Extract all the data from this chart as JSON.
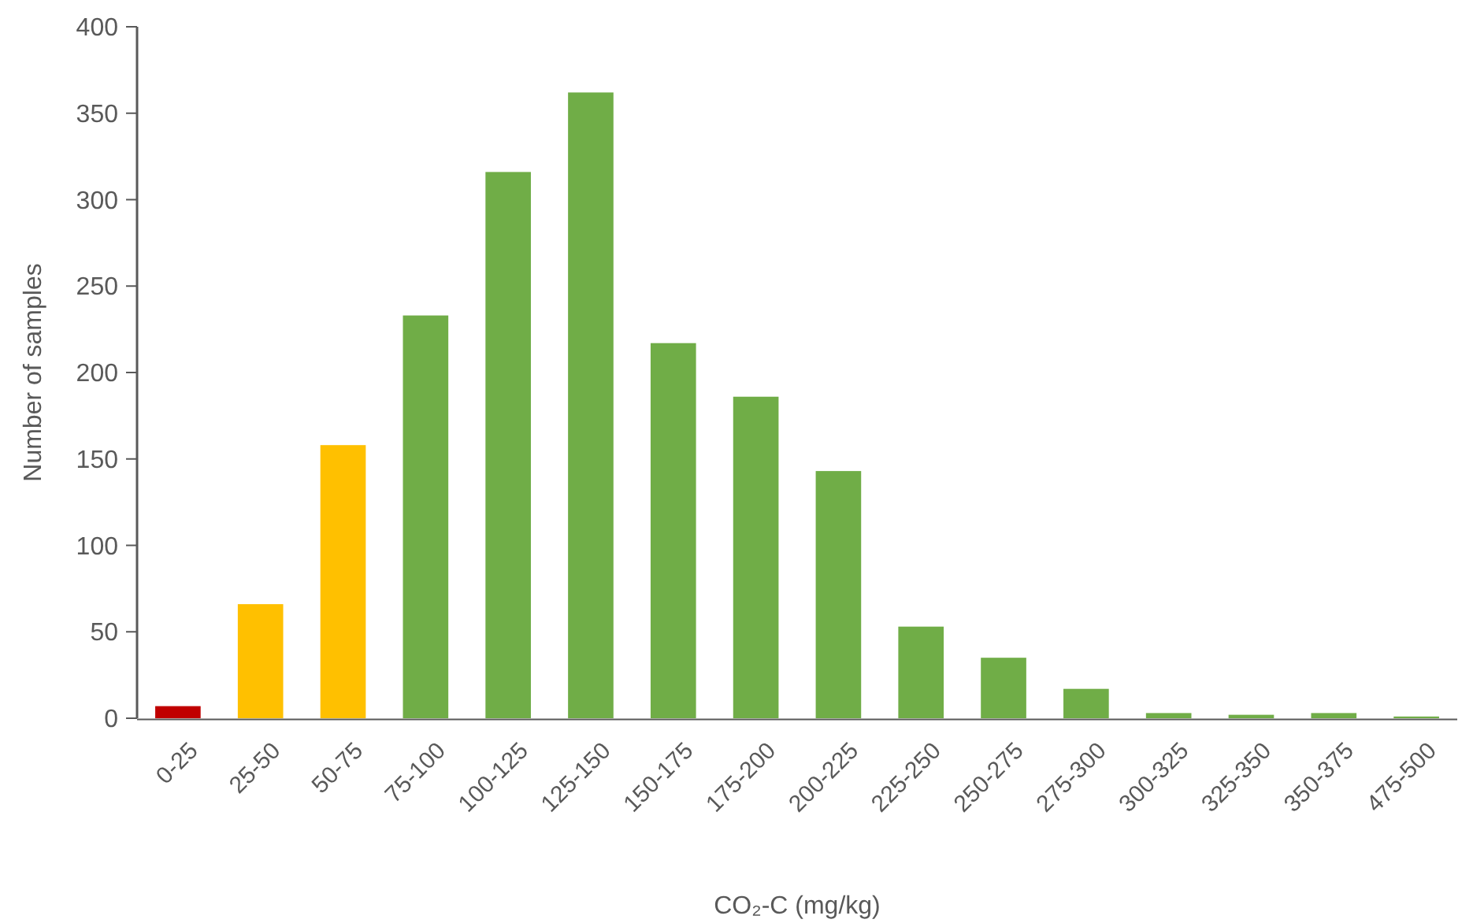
{
  "chart_data": {
    "type": "bar",
    "xlabel": "CO₂-C (mg/kg)",
    "ylabel": "Number of samples",
    "categories": [
      "0-25",
      "25-50",
      "50-75",
      "75-100",
      "100-125",
      "125-150",
      "150-175",
      "175-200",
      "200-225",
      "225-250",
      "250-275",
      "275-300",
      "300-325",
      "325-350",
      "350-375",
      "475-500"
    ],
    "values": [
      7,
      66,
      158,
      233,
      316,
      362,
      217,
      186,
      143,
      53,
      35,
      17,
      3,
      2,
      3,
      1
    ],
    "colors": [
      "#c00000",
      "#ffc000",
      "#ffc000",
      "#70ad47",
      "#70ad47",
      "#70ad47",
      "#70ad47",
      "#70ad47",
      "#70ad47",
      "#70ad47",
      "#70ad47",
      "#70ad47",
      "#70ad47",
      "#70ad47",
      "#70ad47",
      "#70ad47"
    ],
    "ylim": [
      0,
      400
    ],
    "yticks": [
      0,
      50,
      100,
      150,
      200,
      250,
      300,
      350,
      400
    ],
    "grid": false
  }
}
